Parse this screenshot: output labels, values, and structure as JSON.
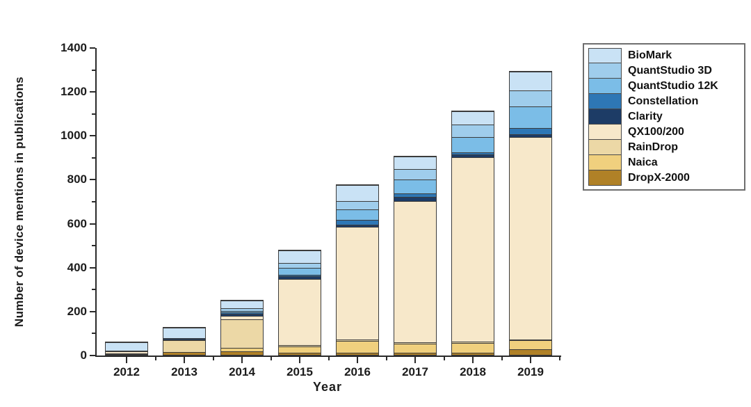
{
  "figure": {
    "background": "#ffffff",
    "axis_color": "#2a2a2a"
  },
  "chart_data": {
    "type": "bar",
    "stacked": true,
    "title": "",
    "xlabel": "Year",
    "ylabel": "Number of device mentions in publications",
    "ylim": [
      0,
      1400
    ],
    "yticks": [
      0,
      200,
      400,
      600,
      800,
      1000,
      1200,
      1400
    ],
    "yticks_minor": [
      100,
      300,
      500,
      700,
      900,
      1100,
      1300
    ],
    "grid": false,
    "legend_position": "outside-top-right",
    "categories": [
      "2012",
      "2013",
      "2014",
      "2015",
      "2016",
      "2017",
      "2018",
      "2019"
    ],
    "series": [
      {
        "name": "BioMark",
        "color": "#c9e2f5",
        "values": [
          39,
          47,
          33,
          56,
          72,
          55,
          59,
          85
        ]
      },
      {
        "name": "QuantStudio 3D",
        "color": "#9fcdec",
        "values": [
          0,
          0,
          12,
          23,
          40,
          50,
          57,
          75
        ]
      },
      {
        "name": "QuantStudio 12K",
        "color": "#7bbde7",
        "values": [
          0,
          0,
          9,
          30,
          47,
          61,
          70,
          98
        ]
      },
      {
        "name": "Constellation",
        "color": "#2e77b5",
        "values": [
          0,
          0,
          4,
          9,
          21,
          18,
          10,
          27
        ]
      },
      {
        "name": "Clarity",
        "color": "#1d3c66",
        "values": [
          3,
          5,
          9,
          12,
          10,
          19,
          13,
          15
        ]
      },
      {
        "name": "QX100/200",
        "color": "#f7e8ca",
        "values": [
          8,
          3,
          18,
          300,
          513,
          643,
          841,
          920
        ]
      },
      {
        "name": "RainDrop",
        "color": "#ecd8a6",
        "values": [
          4,
          56,
          128,
          6,
          5,
          5,
          5,
          5
        ]
      },
      {
        "name": "Naica",
        "color": "#f0d07e",
        "values": [
          0,
          0,
          17,
          28,
          57,
          41,
          46,
          40
        ]
      },
      {
        "name": "DropX-2000",
        "color": "#b08127",
        "values": [
          2,
          12,
          16,
          11,
          8,
          10,
          8,
          25
        ]
      }
    ],
    "bar_totals": [
      56,
      123,
      246,
      475,
      773,
      902,
      1109,
      1290
    ]
  }
}
